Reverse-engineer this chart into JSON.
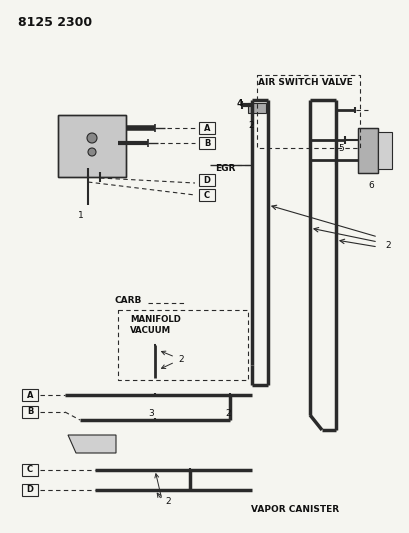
{
  "title": "8125 2300",
  "bg_color": "#f5f5f0",
  "line_color": "#2a2a2a",
  "text_color": "#111111",
  "labels": {
    "air_switch_valve": "AIR SWITCH VALVE",
    "egr": "EGR",
    "carb": "CARB",
    "manifold_vacuum": "MANIFOLD\nVACUUM",
    "vapor_canister": "VAPOR CANISTER",
    "title": "8125 2300"
  }
}
